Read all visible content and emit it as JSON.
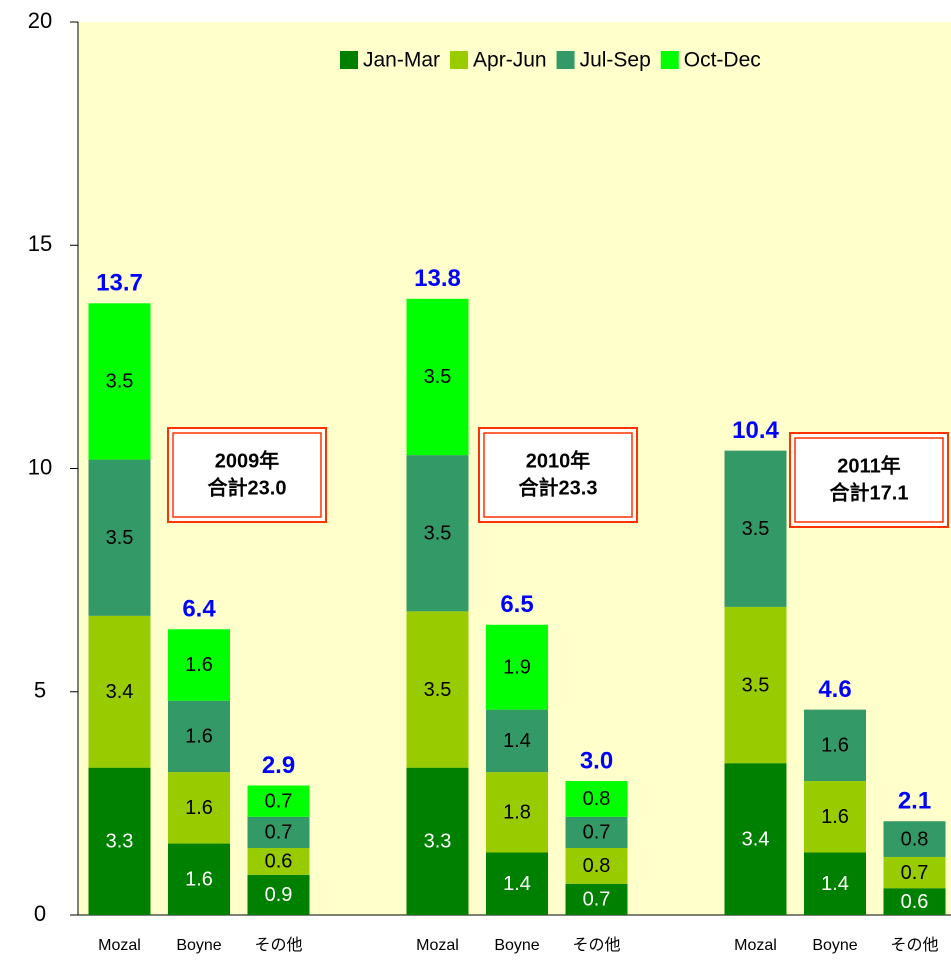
{
  "chart_data": {
    "type": "stacked_bar",
    "categories": [
      "Mozal",
      "Boyne",
      "その他",
      "Mozal",
      "Boyne",
      "その他",
      "Mozal",
      "Boyne",
      "その他"
    ],
    "series": [
      {
        "name": "Jan-Mar",
        "color": "#008000",
        "values": [
          3.3,
          1.6,
          0.9,
          3.3,
          1.4,
          0.7,
          3.4,
          1.4,
          0.6
        ]
      },
      {
        "name": "Apr-Jun",
        "color": "#99cc00",
        "values": [
          3.4,
          1.6,
          0.6,
          3.5,
          1.8,
          0.8,
          3.5,
          1.6,
          0.7
        ]
      },
      {
        "name": "Jul-Sep",
        "color": "#339966",
        "values": [
          3.5,
          1.6,
          0.7,
          3.5,
          1.4,
          0.7,
          3.5,
          1.6,
          0.8
        ]
      },
      {
        "name": "Oct-Dec",
        "color": "#00ff00",
        "values": [
          3.5,
          1.6,
          0.7,
          3.5,
          1.9,
          0.8,
          null,
          null,
          null
        ]
      }
    ],
    "totals": {
      "values": [
        13.7,
        6.4,
        2.9,
        13.8,
        6.5,
        3.0,
        10.4,
        4.6,
        2.1
      ],
      "value_labels": [
        "13.7",
        "6.4",
        "2.9",
        "13.8",
        "6.5",
        "3.0",
        "10.4",
        "4.6",
        "2.1"
      ]
    },
    "annotations": [
      {
        "lines": [
          "2009年",
          "合計23.0"
        ]
      },
      {
        "lines": [
          "2010年",
          "合計23.3"
        ]
      },
      {
        "lines": [
          "2011年",
          "合計17.1"
        ]
      }
    ],
    "ylim": [
      0,
      20
    ],
    "yticks": [
      0,
      5,
      10,
      15,
      20
    ],
    "legend": "top-right",
    "background": "#ffffcc"
  }
}
